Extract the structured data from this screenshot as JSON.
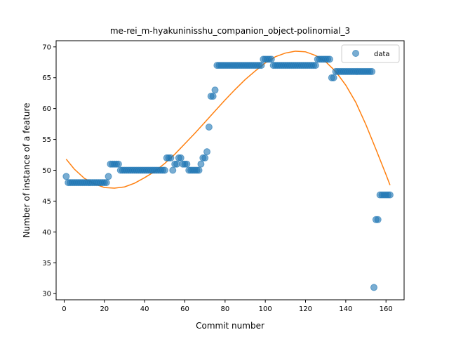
{
  "chart_data": {
    "type": "scatter",
    "title": "me-rei_m-hyakuninisshu_companion_object-polinomial_3",
    "xlabel": "Commit number",
    "ylabel": "Number of instance of a feature",
    "xlim": [
      -4,
      169
    ],
    "ylim": [
      29,
      71
    ],
    "xticks": [
      0,
      20,
      40,
      60,
      80,
      100,
      120,
      140,
      160
    ],
    "yticks": [
      30,
      35,
      40,
      45,
      50,
      55,
      60,
      65,
      70
    ],
    "legend": {
      "position": "top-right",
      "entries": [
        "data"
      ]
    },
    "colors": {
      "scatter": "#1f77b4",
      "fit": "#ff7f0e"
    },
    "series": [
      {
        "name": "data",
        "kind": "scatter",
        "x": [
          1,
          2,
          3,
          4,
          5,
          6,
          7,
          8,
          9,
          10,
          11,
          12,
          13,
          14,
          15,
          16,
          17,
          18,
          19,
          20,
          21,
          22,
          23,
          24,
          25,
          26,
          27,
          28,
          29,
          30,
          31,
          32,
          33,
          34,
          35,
          36,
          37,
          38,
          39,
          40,
          41,
          42,
          43,
          44,
          45,
          46,
          47,
          48,
          49,
          50,
          51,
          52,
          53,
          54,
          55,
          56,
          57,
          58,
          59,
          60,
          61,
          62,
          63,
          64,
          65,
          66,
          67,
          68,
          69,
          70,
          71,
          72,
          73,
          74,
          75,
          76,
          77,
          78,
          79,
          80,
          81,
          82,
          83,
          84,
          85,
          86,
          87,
          88,
          89,
          90,
          91,
          92,
          93,
          94,
          95,
          96,
          97,
          98,
          99,
          100,
          101,
          102,
          103,
          104,
          105,
          106,
          107,
          108,
          109,
          110,
          111,
          112,
          113,
          114,
          115,
          116,
          117,
          118,
          119,
          120,
          121,
          122,
          123,
          124,
          125,
          126,
          127,
          128,
          129,
          130,
          131,
          132,
          133,
          134,
          135,
          136,
          137,
          138,
          139,
          140,
          141,
          142,
          143,
          144,
          145,
          146,
          147,
          148,
          149,
          150,
          151,
          152,
          153,
          154,
          155,
          156,
          157,
          158,
          159,
          160,
          161,
          162
        ],
        "y": [
          49,
          48,
          48,
          48,
          48,
          48,
          48,
          48,
          48,
          48,
          48,
          48,
          48,
          48,
          48,
          48,
          48,
          48,
          48,
          48,
          48,
          49,
          51,
          51,
          51,
          51,
          51,
          50,
          50,
          50,
          50,
          50,
          50,
          50,
          50,
          50,
          50,
          50,
          50,
          50,
          50,
          50,
          50,
          50,
          50,
          50,
          50,
          50,
          50,
          50,
          52,
          52,
          52,
          50,
          51,
          51,
          52,
          52,
          51,
          51,
          51,
          50,
          50,
          50,
          50,
          50,
          50,
          51,
          52,
          52,
          53,
          57,
          62,
          62,
          63,
          67,
          67,
          67,
          67,
          67,
          67,
          67,
          67,
          67,
          67,
          67,
          67,
          67,
          67,
          67,
          67,
          67,
          67,
          67,
          67,
          67,
          67,
          67,
          68,
          68,
          68,
          68,
          68,
          67,
          67,
          67,
          67,
          67,
          67,
          67,
          67,
          67,
          67,
          67,
          67,
          67,
          67,
          67,
          67,
          67,
          67,
          67,
          67,
          67,
          67,
          68,
          68,
          68,
          68,
          68,
          68,
          68,
          65,
          65,
          66,
          66,
          66,
          66,
          66,
          66,
          66,
          66,
          66,
          66,
          66,
          66,
          66,
          66,
          66,
          66,
          66,
          66,
          66,
          31,
          42,
          42,
          46,
          46,
          46,
          46,
          46,
          46
        ]
      },
      {
        "name": "",
        "kind": "line",
        "x": [
          1,
          5,
          10,
          15,
          20,
          25,
          30,
          35,
          40,
          45,
          50,
          55,
          60,
          65,
          70,
          75,
          80,
          85,
          90,
          95,
          100,
          105,
          110,
          115,
          120,
          125,
          130,
          135,
          140,
          145,
          150,
          155,
          160,
          162
        ],
        "y": [
          51.8,
          50.2,
          48.7,
          47.8,
          47.2,
          47.1,
          47.3,
          47.9,
          48.8,
          49.8,
          51.1,
          52.6,
          54.3,
          56.0,
          57.8,
          59.6,
          61.4,
          63.1,
          64.7,
          66.1,
          67.4,
          68.4,
          69.0,
          69.3,
          69.2,
          68.6,
          67.6,
          66.0,
          63.8,
          61.0,
          57.4,
          53.4,
          49.3,
          47.6
        ]
      }
    ]
  }
}
